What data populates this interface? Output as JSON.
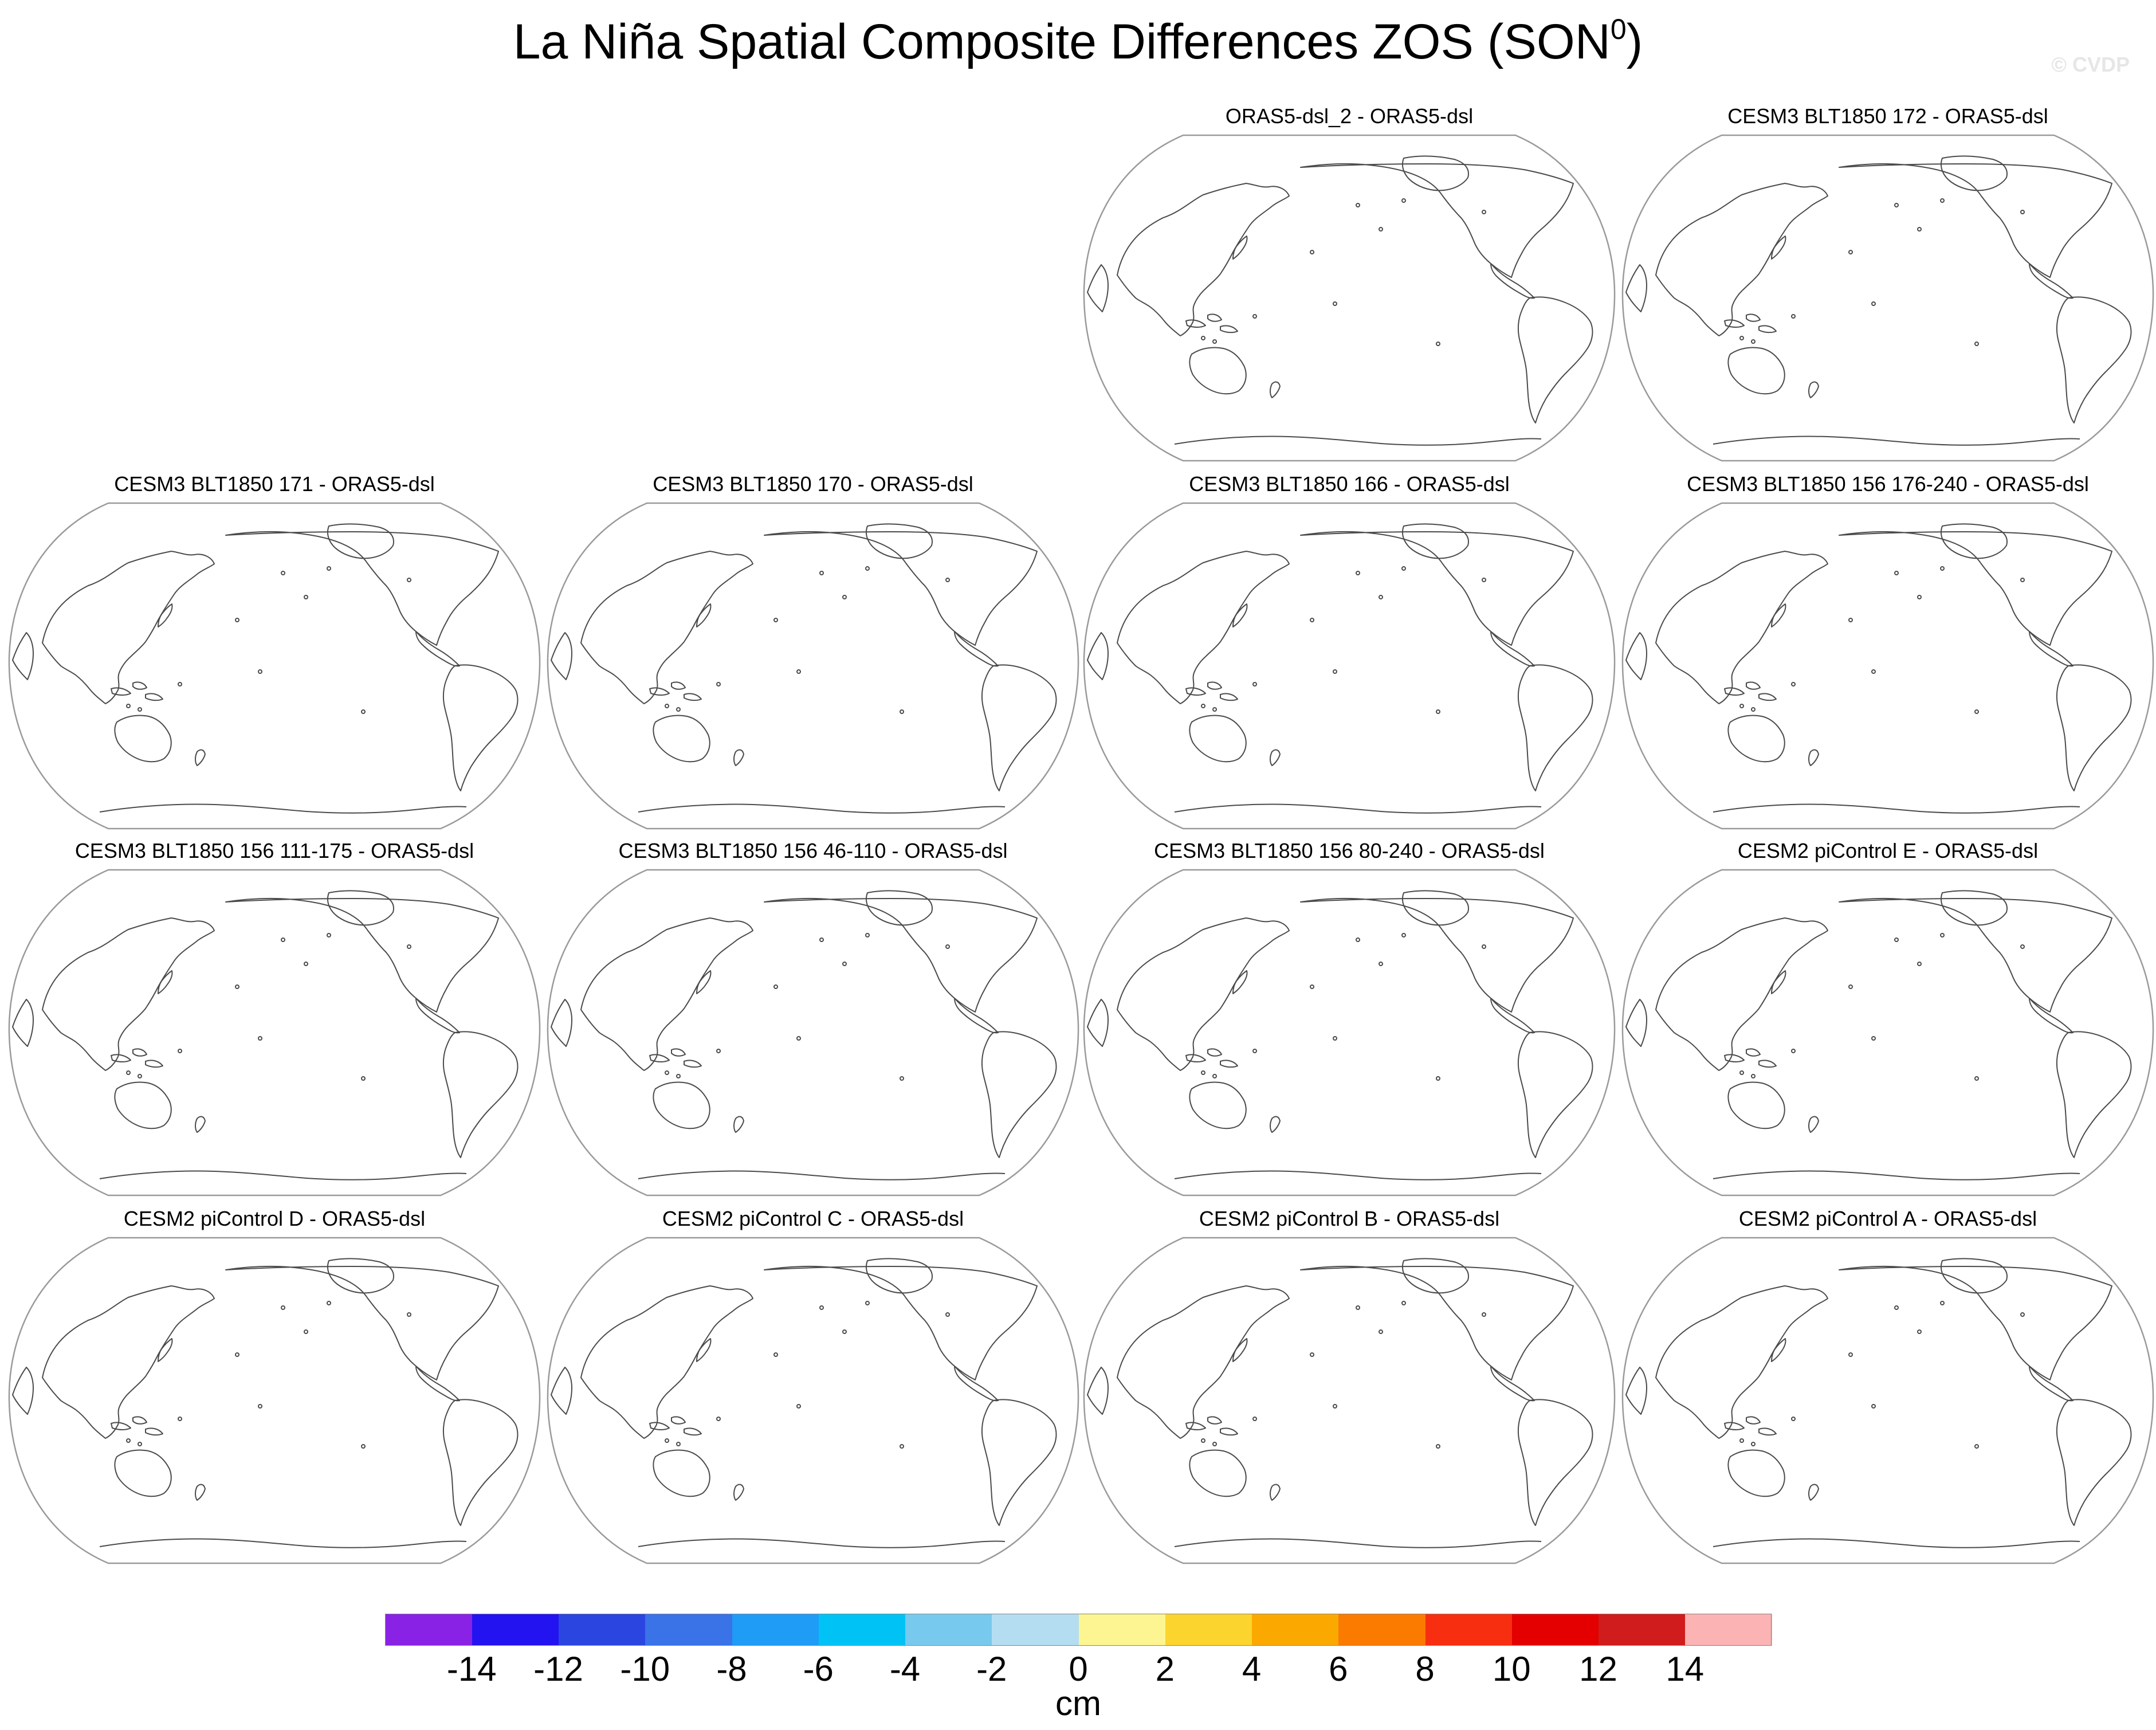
{
  "figure": {
    "title": "La Niña Spatial Composite Differences ZOS (SON",
    "title_superscript": "0",
    "title_suffix": ")",
    "watermark": "© CVDP"
  },
  "panels": [
    "ORAS5-dsl_2 - ORAS5-dsl",
    "CESM3 BLT1850 172 - ORAS5-dsl",
    "CESM3 BLT1850 171 - ORAS5-dsl",
    "CESM3 BLT1850 170 - ORAS5-dsl",
    "CESM3 BLT1850 166 - ORAS5-dsl",
    "CESM3 BLT1850 156 176-240 - ORAS5-dsl",
    "CESM3 BLT1850 156 111-175 - ORAS5-dsl",
    "CESM3 BLT1850 156 46-110 - ORAS5-dsl",
    "CESM3 BLT1850 156 80-240 - ORAS5-dsl",
    "CESM2 piControl E - ORAS5-dsl",
    "CESM2 piControl D - ORAS5-dsl",
    "CESM2 piControl C - ORAS5-dsl",
    "CESM2 piControl B - ORAS5-dsl",
    "CESM2 piControl A - ORAS5-dsl"
  ],
  "colorbar": {
    "units": "cm",
    "tick_labels": [
      "-14",
      "-12",
      "-10",
      "-8",
      "-6",
      "-4",
      "-2",
      "0",
      "2",
      "4",
      "6",
      "8",
      "10",
      "12",
      "14"
    ],
    "colors": [
      "#8a22e6",
      "#2213f0",
      "#2a45e0",
      "#3a72e8",
      "#1e9cf6",
      "#00c2f4",
      "#78c9ee",
      "#b5ddf2",
      "#fdf591",
      "#fbd42e",
      "#fba900",
      "#fb7a00",
      "#f82e10",
      "#e40000",
      "#d01c1c",
      "#fbb3b3"
    ]
  }
}
